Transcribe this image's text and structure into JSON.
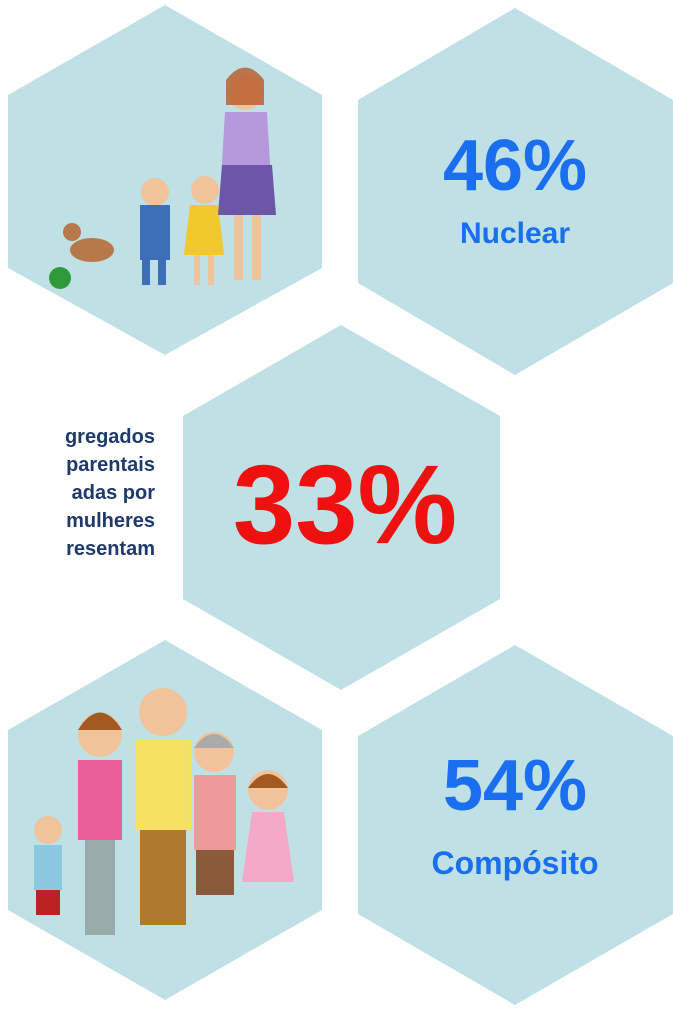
{
  "nuclear": {
    "value": "46%",
    "label": "Nuclear"
  },
  "single_parent": {
    "value": "33%",
    "lines": [
      "gregados",
      "parentais",
      "adas por",
      "mulheres",
      "resentam"
    ]
  },
  "composite": {
    "value": "54%",
    "label": "Compósito"
  }
}
